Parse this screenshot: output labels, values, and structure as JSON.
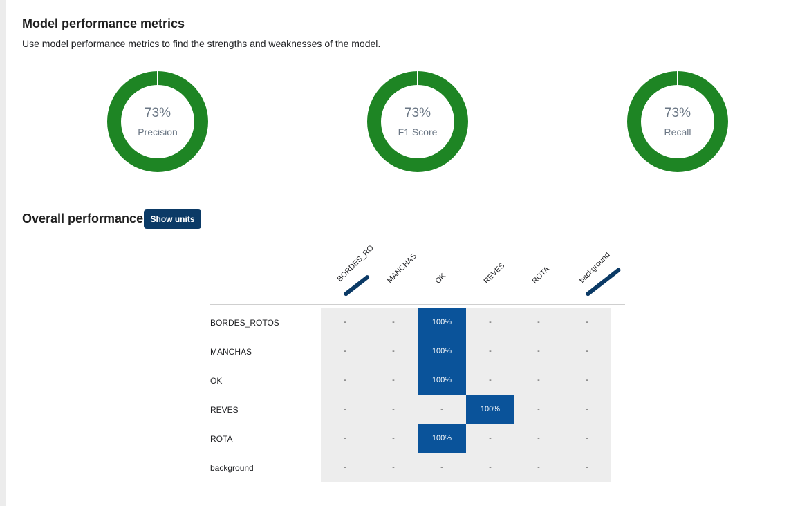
{
  "header": {
    "title": "Model performance metrics",
    "subtitle": "Use model performance metrics to find the strengths and weaknesses of the model."
  },
  "metrics": [
    {
      "value": "73%",
      "label": "Precision",
      "fraction": 0.73
    },
    {
      "value": "73%",
      "label": "F1 Score",
      "fraction": 0.73
    },
    {
      "value": "73%",
      "label": "Recall",
      "fraction": 0.73
    }
  ],
  "colors": {
    "donut": "#1e8524",
    "highlight": "#0a539a",
    "button": "#0b3a66"
  },
  "overall": {
    "title": "Overall performance",
    "show_units_label": "Show units"
  },
  "matrix": {
    "columns": [
      "BORDES_RO",
      "MANCHAS",
      "OK",
      "REVES",
      "ROTA",
      "background"
    ],
    "rows": [
      {
        "label": "BORDES_ROTOS",
        "cells": [
          "-",
          "-",
          "100%",
          "-",
          "-",
          "-"
        ]
      },
      {
        "label": "MANCHAS",
        "cells": [
          "-",
          "-",
          "100%",
          "-",
          "-",
          "-"
        ]
      },
      {
        "label": "OK",
        "cells": [
          "-",
          "-",
          "100%",
          "-",
          "-",
          "-"
        ]
      },
      {
        "label": "REVES",
        "cells": [
          "-",
          "-",
          "-",
          "100%",
          "-",
          "-"
        ]
      },
      {
        "label": "ROTA",
        "cells": [
          "-",
          "-",
          "100%",
          "-",
          "-",
          "-"
        ]
      },
      {
        "label": "background",
        "cells": [
          "-",
          "-",
          "-",
          "-",
          "-",
          "-"
        ]
      }
    ]
  }
}
